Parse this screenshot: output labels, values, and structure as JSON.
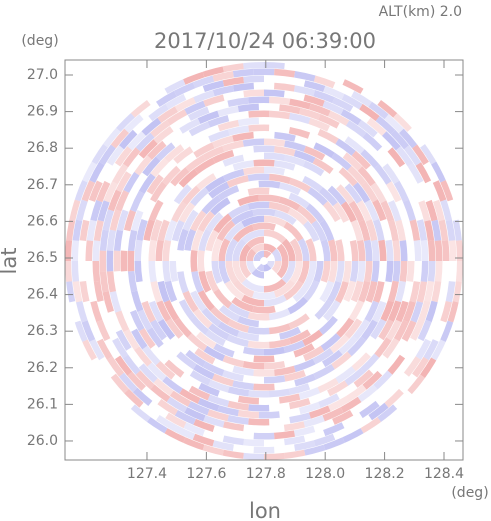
{
  "chart_data": {
    "type": "heatmap",
    "title": "2017/10/24 06:39:00",
    "subtitle": "ALT(km) 2.0",
    "x_label": "lon",
    "y_label": "lat",
    "x_unit": "(deg)",
    "y_unit": "(deg)",
    "xlim": [
      127.124,
      128.464
    ],
    "ylim": [
      25.948,
      27.041
    ],
    "xticks": [
      127.4,
      127.6,
      127.8,
      {
        "value": 128,
        "label": "128.0"
      },
      128.2,
      128.4
    ],
    "yticks": [
      {
        "value": 26,
        "label": "26.0"
      },
      26.1,
      26.2,
      26.3,
      26.4,
      26.5,
      26.6,
      26.7,
      26.8,
      26.9,
      {
        "value": 27,
        "label": "27.0"
      }
    ],
    "colors": [
      "#f3b3b3",
      "#c2c2f3"
    ]
  }
}
